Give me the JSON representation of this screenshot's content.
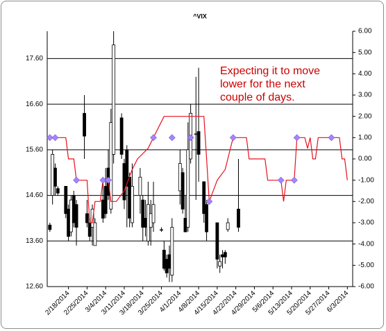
{
  "chart_data": {
    "type": "candlestick",
    "title": "^VIX",
    "annotation": [
      "Expecting it to move",
      "lower for the next",
      "couple of days."
    ],
    "annotation_color": "#cc0000",
    "up_color": "#ffffff",
    "down_color": "#000000",
    "grid": true,
    "xlim": [
      "2/10/2014",
      "6/5/2014"
    ],
    "xticks": [
      "2/18/2014",
      "2/25/2014",
      "3/4/2014",
      "3/11/2014",
      "3/18/2014",
      "3/25/2014",
      "4/1/2014",
      "4/8/2014",
      "4/15/2014",
      "4/22/2014",
      "4/29/2014",
      "5/6/2014",
      "5/13/2014",
      "5/20/2014",
      "5/27/2014",
      "6/3/2014"
    ],
    "ylim": [
      12.6,
      18.2
    ],
    "yticks": [
      {
        "value": 12.6,
        "label": "12.60"
      },
      {
        "value": 13.6,
        "label": "13.60"
      },
      {
        "value": 14.6,
        "label": "14.60"
      },
      {
        "value": 15.6,
        "label": "15.60"
      },
      {
        "value": 16.6,
        "label": "16.60"
      },
      {
        "value": 17.6,
        "label": "17.60"
      }
    ],
    "y2lim": [
      -6,
      6
    ],
    "y2ticks": [
      {
        "value": -6,
        "label": "-6.00"
      },
      {
        "value": -5,
        "label": "-5.00"
      },
      {
        "value": -4,
        "label": "-4.00"
      },
      {
        "value": -3,
        "label": "-3.00"
      },
      {
        "value": -2,
        "label": "-2.00"
      },
      {
        "value": -1,
        "label": "-1.00"
      },
      {
        "value": 0,
        "label": "0.00"
      },
      {
        "value": 1,
        "label": "1.00"
      },
      {
        "value": 2,
        "label": "2.00"
      },
      {
        "value": 3,
        "label": "3.00"
      },
      {
        "value": 4,
        "label": "4.00"
      },
      {
        "value": 5,
        "label": "5.00"
      },
      {
        "value": 6,
        "label": "6.00"
      }
    ],
    "candles": {
      "x": [
        "2/11/2014",
        "2/12/2014",
        "2/13/2014",
        "2/14/2014",
        "2/17/2014",
        "2/18/2014",
        "2/19/2014",
        "2/20/2014",
        "2/21/2014",
        "2/24/2014",
        "2/25/2014",
        "2/26/2014",
        "2/27/2014",
        "2/28/2014",
        "3/3/2014",
        "3/4/2014",
        "3/5/2014",
        "3/6/2014",
        "3/7/2014",
        "3/10/2014",
        "3/11/2014",
        "3/12/2014",
        "3/13/2014",
        "3/14/2014",
        "3/17/2014",
        "3/18/2014",
        "3/19/2014",
        "3/20/2014",
        "3/21/2014",
        "3/22/2014",
        "3/25/2014",
        "3/26/2014",
        "3/27/2014",
        "3/28/2014",
        "3/29/2014",
        "4/1/2014",
        "4/2/2014",
        "4/3/2014",
        "4/4/2014",
        "4/5/2014",
        "4/7/2014",
        "4/8/2014",
        "4/10/2014",
        "4/11/2014",
        "4/15/2014",
        "4/16/2014",
        "4/17/2014",
        "4/18/2014",
        "4/19/2014",
        "4/23/2014"
      ],
      "open": [
        13.95,
        14.6,
        15.2,
        14.75,
        14.8,
        14.3,
        13.8,
        14.6,
        14.4,
        16.4,
        14.2,
        14.0,
        13.9,
        13.5,
        14.5,
        14.8,
        15.2,
        14.3,
        15.5,
        16.3,
        15.3,
        15.6,
        15.0,
        14.0,
        14.6,
        14.5,
        14.1,
        13.6,
        13.9,
        14.0,
        13.85,
        13.4,
        13.2,
        13.3,
        12.85,
        14.7,
        15.1,
        14.1,
        13.9,
        15.4,
        15.95,
        16.0,
        14.9,
        14.4,
        14.0,
        13.05,
        13.3,
        13.35,
        13.85,
        14.3
      ],
      "high": [
        14.0,
        15.6,
        15.3,
        14.8,
        14.8,
        14.4,
        14.6,
        14.7,
        14.5,
        16.8,
        14.5,
        14.1,
        14.4,
        14.1,
        15.0,
        15.2,
        15.6,
        16.5,
        18.2,
        16.4,
        15.4,
        15.7,
        15.1,
        15.3,
        15.2,
        14.6,
        14.5,
        14.9,
        14.5,
        14.9,
        13.9,
        13.6,
        13.3,
        13.5,
        14.1,
        15.6,
        15.2,
        14.6,
        16.2,
        16.6,
        17.2,
        17.4,
        14.9,
        14.5,
        14.0,
        13.3,
        13.4,
        13.4,
        14.1,
        15.4
      ],
      "low": [
        13.8,
        14.4,
        14.6,
        14.6,
        14.1,
        13.6,
        13.7,
        13.9,
        13.5,
        15.4,
        13.9,
        13.6,
        13.5,
        13.5,
        14.0,
        14.1,
        14.5,
        14.2,
        15.3,
        15.4,
        14.3,
        13.9,
        13.9,
        13.9,
        14.2,
        13.6,
        13.7,
        13.5,
        13.5,
        13.8,
        13.8,
        12.95,
        12.8,
        12.7,
        12.7,
        14.4,
        14.2,
        13.8,
        13.8,
        15.3,
        14.5,
        14.9,
        14.0,
        13.6,
        13.0,
        12.9,
        13.0,
        13.1,
        13.8,
        13.8
      ],
      "close": [
        13.85,
        15.5,
        14.8,
        14.65,
        14.2,
        13.7,
        14.5,
        14.0,
        13.9,
        15.9,
        14.0,
        13.7,
        14.3,
        14.0,
        14.1,
        14.2,
        14.6,
        16.2,
        17.9,
        15.5,
        14.5,
        14.8,
        14.1,
        14.8,
        15.0,
        13.9,
        13.9,
        14.4,
        14.2,
        14.4,
        13.85,
        13.0,
        12.9,
        13.0,
        13.9,
        15.3,
        14.3,
        13.8,
        15.6,
        16.4,
        15.95,
        15.5,
        14.2,
        13.8,
        13.2,
        13.15,
        13.25,
        13.25,
        14.0,
        13.9
      ]
    },
    "line": {
      "axis": "y2",
      "color": "#e8101c",
      "x": [
        "2/11/2014",
        "2/17/2014",
        "2/18/2014",
        "2/20/2014",
        "2/21/2014",
        "2/25/2014",
        "2/26/2014",
        "2/27/2014",
        "2/28/2014",
        "3/2/2014",
        "3/3/2014",
        "3/5/2014",
        "3/6/2014",
        "3/8/2014",
        "3/11/2014",
        "3/14/2014",
        "3/16/2014",
        "3/20/2014",
        "3/22/2014",
        "3/26/2014",
        "4/10/2014",
        "4/11/2014",
        "4/12/2014",
        "4/15/2014",
        "4/18/2014",
        "4/21/2014",
        "4/26/2014",
        "4/27/2014",
        "5/3/2014",
        "5/4/2014",
        "5/9/2014",
        "5/10/2014",
        "5/11/2014",
        "5/14/2014",
        "5/15/2014",
        "5/18/2014",
        "5/19/2014",
        "5/20/2014",
        "5/21/2014",
        "5/22/2014",
        "5/23/2014",
        "5/31/2014",
        "6/1/2014",
        "6/2/2014",
        "6/3/2014"
      ],
      "values": [
        1,
        1,
        0,
        0,
        -1,
        -1,
        -3,
        -3,
        -2,
        -2,
        -1,
        -1,
        -2,
        -2,
        -1.5,
        -0.5,
        0,
        0.5,
        1,
        2,
        2,
        0,
        -2,
        -1,
        -0.5,
        1,
        1,
        0,
        0,
        -1,
        -1,
        -2,
        -1,
        -1,
        1,
        1,
        0.5,
        1,
        0,
        0,
        1,
        1,
        0,
        0,
        -1
      ]
    },
    "markers": {
      "axis": "y2",
      "color": "#a586f7",
      "x": [
        "2/11/2014",
        "2/13/2014",
        "2/21/2014",
        "3/3/2014",
        "3/5/2014",
        "3/22/2014",
        "3/29/2014",
        "4/5/2014",
        "4/12/2014",
        "4/21/2014",
        "5/9/2014",
        "5/14/2014",
        "5/15/2014",
        "5/28/2014"
      ],
      "values": [
        1,
        1,
        -1,
        -1,
        -1,
        1,
        1,
        1,
        -2,
        1,
        -1,
        -1,
        1,
        1
      ]
    }
  }
}
